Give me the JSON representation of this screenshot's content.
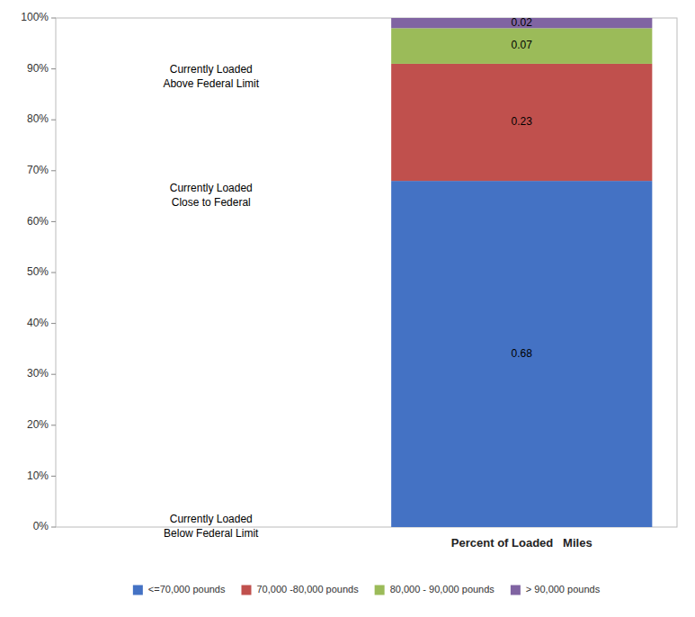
{
  "chart_data": {
    "type": "bar",
    "stacked": true,
    "data_labels": true,
    "grid": false,
    "legend": "bottom",
    "categories": [
      "Percent of Loaded   Miles"
    ],
    "series": [
      {
        "name": "<=70,000 pounds",
        "color": "#4472C4",
        "values": [
          0.68
        ]
      },
      {
        "name": "70,000 -80,000 pounds",
        "color": "#C0504D",
        "values": [
          0.23
        ]
      },
      {
        "name": "80,000 - 90,000 pounds",
        "color": "#9BBB59",
        "values": [
          0.07
        ]
      },
      {
        "name": "> 90,000 pounds",
        "color": "#8064A2",
        "values": [
          0.02
        ]
      }
    ],
    "ylim": [
      0,
      1
    ],
    "yticks": [
      {
        "value": 0,
        "label": "0%"
      },
      {
        "value": 0.1,
        "label": "10%"
      },
      {
        "value": 0.2,
        "label": "20%"
      },
      {
        "value": 0.3,
        "label": "30%"
      },
      {
        "value": 0.4,
        "label": "40%"
      },
      {
        "value": 0.5,
        "label": "50%"
      },
      {
        "value": 0.6,
        "label": "60%"
      },
      {
        "value": 0.7,
        "label": "70%"
      },
      {
        "value": 0.8,
        "label": "80%"
      },
      {
        "value": 0.9,
        "label": "90%"
      },
      {
        "value": 1,
        "label": "100%"
      }
    ],
    "annotations": [
      "Currently Loaded\nAbove Federal Limit",
      "Currently Loaded\nClose to Federal",
      "Currently Loaded\nBelow Federal Limit"
    ]
  }
}
